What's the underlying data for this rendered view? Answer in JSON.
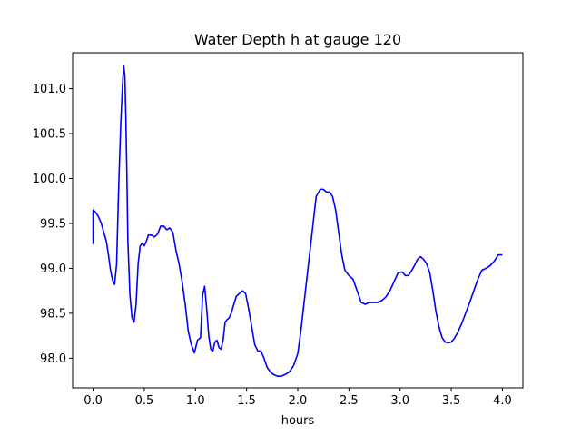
{
  "chart_data": {
    "type": "line",
    "title": "Water Depth h at gauge 120",
    "xlabel": "hours",
    "ylabel": "",
    "xlim": [
      -0.2,
      4.2
    ],
    "ylim": [
      97.67,
      101.4
    ],
    "x_ticks": [
      0.0,
      0.5,
      1.0,
      1.5,
      2.0,
      2.5,
      3.0,
      3.5,
      4.0
    ],
    "x_tick_labels": [
      "0.0",
      "0.5",
      "1.0",
      "1.5",
      "2.0",
      "2.5",
      "3.0",
      "3.5",
      "4.0"
    ],
    "y_ticks": [
      98.0,
      98.5,
      99.0,
      99.5,
      100.0,
      100.5,
      101.0
    ],
    "y_tick_labels": [
      "98.0",
      "98.5",
      "99.0",
      "99.5",
      "100.0",
      "100.5",
      "101.0"
    ],
    "grid": false,
    "legend": "none",
    "colors": {
      "line": "#0000ff",
      "axes": "#000000",
      "background": "#ffffff"
    },
    "series": [
      {
        "x": [
          0.0,
          0.0,
          0.02,
          0.05,
          0.08,
          0.1,
          0.13,
          0.15,
          0.17,
          0.19,
          0.21,
          0.23,
          0.25,
          0.27,
          0.29,
          0.3,
          0.31,
          0.32,
          0.33,
          0.34,
          0.36,
          0.38,
          0.4,
          0.42,
          0.44,
          0.46,
          0.48,
          0.5,
          0.52,
          0.54,
          0.57,
          0.6,
          0.63,
          0.66,
          0.69,
          0.72,
          0.75,
          0.78,
          0.81,
          0.84,
          0.87,
          0.9,
          0.93,
          0.96,
          0.99,
          1.02,
          1.05,
          1.07,
          1.09,
          1.11,
          1.13,
          1.15,
          1.17,
          1.19,
          1.21,
          1.23,
          1.25,
          1.27,
          1.29,
          1.31,
          1.33,
          1.35,
          1.37,
          1.4,
          1.43,
          1.46,
          1.49,
          1.52,
          1.55,
          1.58,
          1.61,
          1.64,
          1.67,
          1.7,
          1.73,
          1.76,
          1.8,
          1.84,
          1.88,
          1.92,
          1.96,
          2.0,
          2.03,
          2.06,
          2.1,
          2.14,
          2.18,
          2.22,
          2.25,
          2.28,
          2.31,
          2.34,
          2.37,
          2.4,
          2.43,
          2.46,
          2.5,
          2.54,
          2.58,
          2.62,
          2.66,
          2.7,
          2.74,
          2.78,
          2.82,
          2.86,
          2.9,
          2.94,
          2.98,
          3.02,
          3.05,
          3.08,
          3.11,
          3.14,
          3.17,
          3.2,
          3.23,
          3.26,
          3.29,
          3.32,
          3.35,
          3.38,
          3.41,
          3.44,
          3.47,
          3.5,
          3.53,
          3.56,
          3.6,
          3.64,
          3.68,
          3.72,
          3.76,
          3.8,
          3.84,
          3.88,
          3.92,
          3.96,
          4.0
        ],
        "values": [
          99.27,
          99.65,
          99.63,
          99.58,
          99.5,
          99.42,
          99.3,
          99.15,
          98.98,
          98.87,
          98.82,
          99.05,
          99.9,
          100.6,
          101.1,
          101.25,
          101.15,
          100.7,
          100.05,
          99.3,
          98.7,
          98.45,
          98.4,
          98.6,
          99.05,
          99.25,
          99.28,
          99.25,
          99.3,
          99.37,
          99.37,
          99.35,
          99.38,
          99.47,
          99.47,
          99.43,
          99.45,
          99.4,
          99.2,
          99.05,
          98.85,
          98.6,
          98.3,
          98.15,
          98.06,
          98.2,
          98.23,
          98.7,
          98.8,
          98.55,
          98.25,
          98.1,
          98.08,
          98.18,
          98.2,
          98.12,
          98.1,
          98.2,
          98.4,
          98.43,
          98.45,
          98.5,
          98.58,
          98.69,
          98.72,
          98.75,
          98.72,
          98.55,
          98.35,
          98.15,
          98.08,
          98.08,
          98.0,
          97.9,
          97.85,
          97.82,
          97.8,
          97.8,
          97.82,
          97.85,
          97.92,
          98.05,
          98.3,
          98.6,
          99.0,
          99.4,
          99.8,
          99.88,
          99.88,
          99.85,
          99.85,
          99.8,
          99.65,
          99.4,
          99.15,
          98.98,
          98.92,
          98.88,
          98.75,
          98.62,
          98.6,
          98.62,
          98.62,
          98.62,
          98.64,
          98.68,
          98.75,
          98.85,
          98.95,
          98.96,
          98.92,
          98.92,
          98.97,
          99.03,
          99.1,
          99.13,
          99.1,
          99.05,
          98.95,
          98.75,
          98.52,
          98.35,
          98.23,
          98.18,
          98.17,
          98.18,
          98.22,
          98.28,
          98.38,
          98.5,
          98.62,
          98.75,
          98.88,
          98.98,
          99.0,
          99.03,
          99.08,
          99.15,
          99.15
        ]
      }
    ]
  }
}
